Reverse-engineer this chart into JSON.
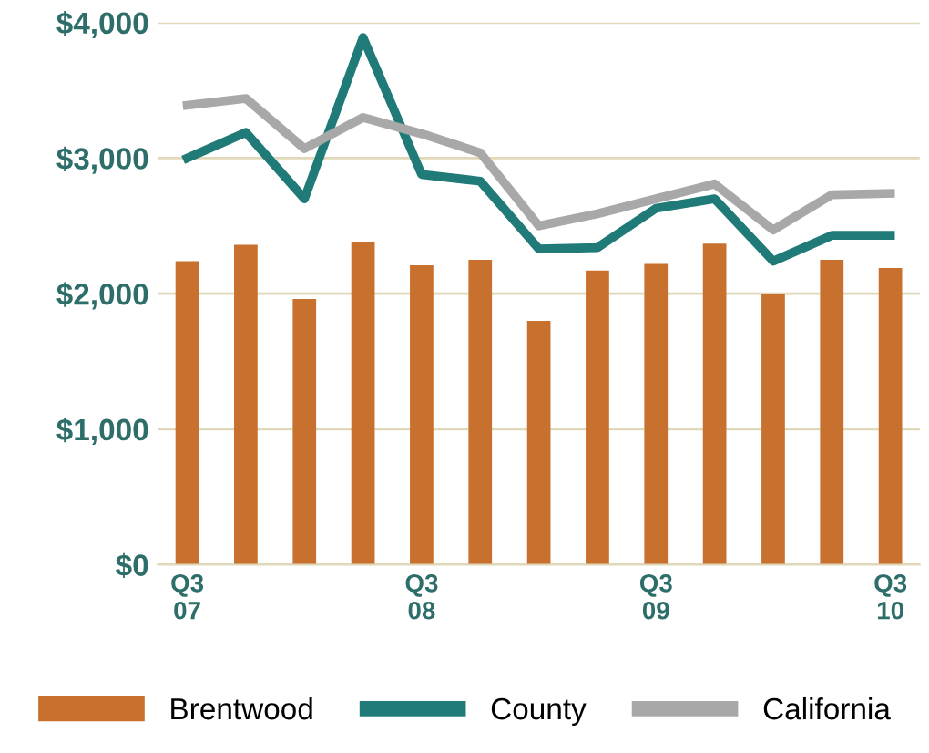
{
  "chart_data": {
    "type": "bar",
    "categories": [
      "Q3\n07",
      null,
      null,
      null,
      "Q3\n08",
      null,
      null,
      null,
      "Q3\n09",
      null,
      null,
      null,
      "Q3\n10"
    ],
    "series": [
      {
        "name": "Brentwood",
        "color": "#c8702e",
        "values": [
          2240,
          2360,
          1960,
          2380,
          2210,
          2250,
          1800,
          2170,
          2220,
          2370,
          2000,
          2250,
          2190
        ]
      },
      {
        "name": "County",
        "type": "line",
        "color": "#1f7a78",
        "values": [
          3000,
          3190,
          2700,
          3890,
          2880,
          2830,
          2330,
          2340,
          2630,
          2700,
          2240,
          2430,
          2430
        ]
      },
      {
        "name": "California",
        "type": "line",
        "color": "#a8a8a8",
        "values": [
          3390,
          3440,
          3070,
          3300,
          3180,
          3040,
          2500,
          2590,
          2700,
          2810,
          2470,
          2730,
          2740
        ]
      }
    ],
    "ylim": [
      0,
      4000
    ],
    "yticks": [
      {
        "value": 0,
        "label": "$0"
      },
      {
        "value": 1000,
        "label": "$1,000"
      },
      {
        "value": 2000,
        "label": "$2,000"
      },
      {
        "value": 3000,
        "label": "$3,000"
      },
      {
        "value": 4000,
        "label": "$4,000"
      }
    ],
    "grid": "y",
    "legend": "bottom",
    "marker": "none",
    "line_style": "solid"
  }
}
